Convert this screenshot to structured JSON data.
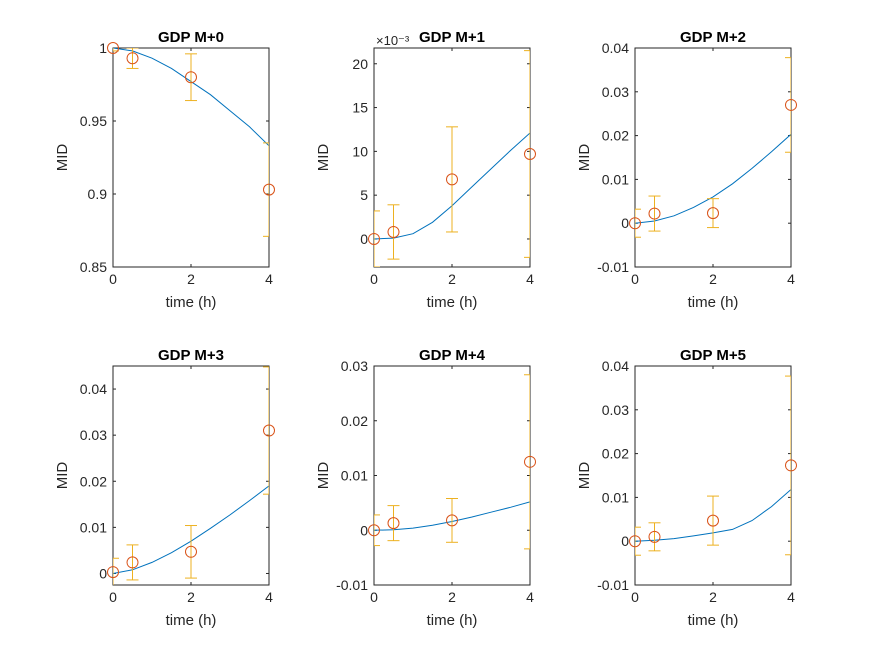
{
  "colors": {
    "model": "#0072BD",
    "data": "#D95319",
    "errorbar": "#EDB120",
    "axis": "#262626",
    "background": "#ffffff"
  },
  "chart_data": [
    {
      "type": "line",
      "title": "GDP M+0",
      "xlabel": "time (h)",
      "ylabel": "MID",
      "xlim": [
        0,
        4
      ],
      "ylim": [
        0.85,
        1.0
      ],
      "xticks": [
        0,
        2,
        4
      ],
      "xtick_labels": [
        "0",
        "2",
        "4"
      ],
      "yticks": [
        0.85,
        0.9,
        0.95,
        1.0
      ],
      "ytick_labels": [
        "0.85",
        "0.9",
        "0.95",
        "1"
      ],
      "exponent_label": "",
      "series": [
        {
          "kind": "model",
          "x": [
            0,
            0.5,
            1,
            1.5,
            2,
            2.5,
            3,
            3.5,
            4
          ],
          "y": [
            1.0,
            0.998,
            0.993,
            0.986,
            0.977,
            0.968,
            0.957,
            0.946,
            0.933
          ]
        },
        {
          "kind": "data",
          "x": [
            0,
            0.5,
            2,
            4
          ],
          "y": [
            1.0,
            0.993,
            0.98,
            0.903
          ],
          "err": [
            0.002,
            0.007,
            0.016,
            0.032
          ]
        }
      ]
    },
    {
      "type": "line",
      "title": "GDP M+1",
      "xlabel": "time (h)",
      "ylabel": "MID",
      "xlim": [
        0,
        4
      ],
      "ylim": [
        -3.2,
        21.8
      ],
      "xticks": [
        0,
        2,
        4
      ],
      "xtick_labels": [
        "0",
        "2",
        "4"
      ],
      "yticks": [
        0,
        5,
        10,
        15,
        20
      ],
      "ytick_labels": [
        "0",
        "5",
        "10",
        "15",
        "20"
      ],
      "exponent_label": "×10⁻³",
      "series": [
        {
          "kind": "model",
          "x": [
            0,
            0.5,
            1,
            1.5,
            2,
            2.5,
            3,
            3.5,
            4
          ],
          "y": [
            0,
            0.1,
            0.6,
            1.9,
            3.8,
            5.9,
            8.0,
            10.1,
            12.1
          ]
        },
        {
          "kind": "data",
          "x": [
            0,
            0.5,
            2,
            4
          ],
          "y": [
            0,
            0.8,
            6.8,
            9.7
          ],
          "err": [
            3.2,
            3.1,
            6.0,
            11.8
          ]
        }
      ]
    },
    {
      "type": "line",
      "title": "GDP M+2",
      "xlabel": "time (h)",
      "ylabel": "MID",
      "xlim": [
        0,
        4
      ],
      "ylim": [
        -0.01,
        0.04
      ],
      "xticks": [
        0,
        2,
        4
      ],
      "xtick_labels": [
        "0",
        "2",
        "4"
      ],
      "yticks": [
        -0.01,
        0,
        0.01,
        0.02,
        0.03,
        0.04
      ],
      "ytick_labels": [
        "-0.01",
        "0",
        "0.01",
        "0.02",
        "0.03",
        "0.04"
      ],
      "exponent_label": "",
      "series": [
        {
          "kind": "model",
          "x": [
            0,
            0.5,
            1,
            1.5,
            2,
            2.5,
            3,
            3.5,
            4
          ],
          "y": [
            0,
            0.0005,
            0.0017,
            0.0036,
            0.006,
            0.009,
            0.0125,
            0.0163,
            0.0203
          ]
        },
        {
          "kind": "data",
          "x": [
            0,
            0.5,
            2,
            4
          ],
          "y": [
            0,
            0.0022,
            0.0023,
            0.027
          ],
          "err": [
            0.0032,
            0.004,
            0.0033,
            0.0108
          ]
        }
      ]
    },
    {
      "type": "line",
      "title": "GDP M+3",
      "xlabel": "time (h)",
      "ylabel": "MID",
      "xlim": [
        0,
        4
      ],
      "ylim": [
        -0.0025,
        0.045
      ],
      "xticks": [
        0,
        2,
        4
      ],
      "xtick_labels": [
        "0",
        "2",
        "4"
      ],
      "yticks": [
        0,
        0.01,
        0.02,
        0.03,
        0.04
      ],
      "ytick_labels": [
        "0",
        "0.01",
        "0.02",
        "0.03",
        "0.04"
      ],
      "exponent_label": "",
      "series": [
        {
          "kind": "model",
          "x": [
            0,
            0.5,
            1,
            1.5,
            2,
            2.5,
            3,
            3.5,
            4
          ],
          "y": [
            0,
            0.0008,
            0.0024,
            0.0045,
            0.007,
            0.0098,
            0.0127,
            0.0158,
            0.019
          ]
        },
        {
          "kind": "data",
          "x": [
            0,
            0.5,
            2,
            4
          ],
          "y": [
            0.0003,
            0.0024,
            0.0047,
            0.031
          ],
          "err": [
            0.003,
            0.0038,
            0.0057,
            0.0138
          ]
        }
      ]
    },
    {
      "type": "line",
      "title": "GDP M+4",
      "xlabel": "time (h)",
      "ylabel": "MID",
      "xlim": [
        0,
        4
      ],
      "ylim": [
        -0.01,
        0.03
      ],
      "xticks": [
        0,
        2,
        4
      ],
      "xtick_labels": [
        "0",
        "2",
        "4"
      ],
      "yticks": [
        -0.01,
        0,
        0.01,
        0.02,
        0.03
      ],
      "ytick_labels": [
        "-0.01",
        "0",
        "0.01",
        "0.02",
        "0.03"
      ],
      "exponent_label": "",
      "series": [
        {
          "kind": "model",
          "x": [
            0,
            0.5,
            1,
            1.5,
            2,
            2.5,
            3,
            3.5,
            4
          ],
          "y": [
            0,
            0.0001,
            0.0004,
            0.0009,
            0.0016,
            0.0024,
            0.0033,
            0.0042,
            0.0052
          ]
        },
        {
          "kind": "data",
          "x": [
            0,
            0.5,
            2,
            4
          ],
          "y": [
            0,
            0.0013,
            0.0018,
            0.0125
          ],
          "err": [
            0.0028,
            0.0032,
            0.004,
            0.0159
          ]
        }
      ]
    },
    {
      "type": "line",
      "title": "GDP M+5",
      "xlabel": "time (h)",
      "ylabel": "MID",
      "xlim": [
        0,
        4
      ],
      "ylim": [
        -0.01,
        0.04
      ],
      "xticks": [
        0,
        2,
        4
      ],
      "xtick_labels": [
        "0",
        "2",
        "4"
      ],
      "yticks": [
        -0.01,
        0,
        0.01,
        0.02,
        0.03,
        0.04
      ],
      "ytick_labels": [
        "-0.01",
        "0",
        "0.01",
        "0.02",
        "0.03",
        "0.04"
      ],
      "exponent_label": "",
      "series": [
        {
          "kind": "model",
          "x": [
            0,
            0.5,
            1,
            1.5,
            2,
            2.5,
            3,
            3.5,
            4
          ],
          "y": [
            0,
            0.0002,
            0.0006,
            0.0012,
            0.0019,
            0.0027,
            0.0047,
            0.0079,
            0.0118
          ]
        },
        {
          "kind": "data",
          "x": [
            0,
            0.5,
            2,
            4
          ],
          "y": [
            0,
            0.001,
            0.0047,
            0.0173
          ],
          "err": [
            0.0032,
            0.0032,
            0.0056,
            0.0204
          ]
        }
      ]
    }
  ]
}
